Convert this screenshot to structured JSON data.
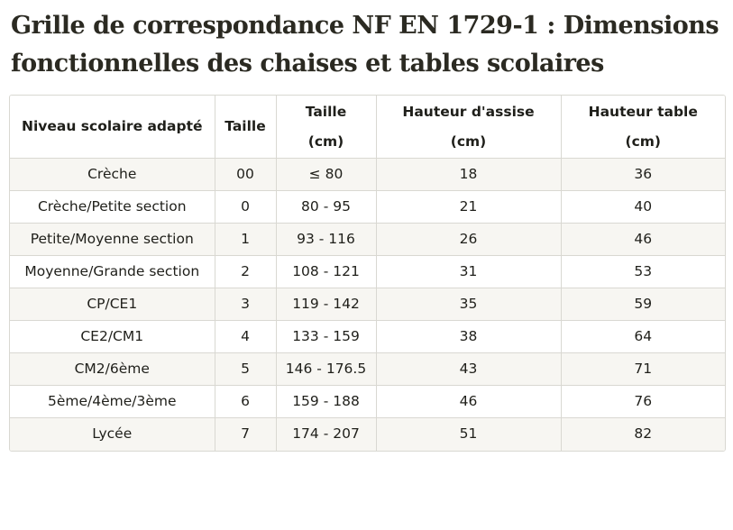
{
  "title": "Grille de correspondance NF EN 1729-1 : Dimensions fonctionnelles des chaises et tables scolaires",
  "table": {
    "headers": [
      "Niveau scolaire adapté",
      "Taille",
      "Taille (cm)",
      "Hauteur d'assise (cm)",
      "Hauteur table (cm)"
    ],
    "rows": [
      [
        "Crèche",
        "00",
        "≤ 80",
        "18",
        "36"
      ],
      [
        "Crèche/Petite section",
        "0",
        "80 - 95",
        "21",
        "40"
      ],
      [
        "Petite/Moyenne section",
        "1",
        "93 - 116",
        "26",
        "46"
      ],
      [
        "Moyenne/Grande section",
        "2",
        "108 - 121",
        "31",
        "53"
      ],
      [
        "CP/CE1",
        "3",
        "119 - 142",
        "35",
        "59"
      ],
      [
        "CE2/CM1",
        "4",
        "133 - 159",
        "38",
        "64"
      ],
      [
        "CM2/6ème",
        "5",
        "146 - 176.5",
        "43",
        "71"
      ],
      [
        "5ème/4ème/3ème",
        "6",
        "159 - 188",
        "46",
        "76"
      ],
      [
        "Lycée",
        "7",
        "174 - 207",
        "51",
        "82"
      ]
    ]
  }
}
